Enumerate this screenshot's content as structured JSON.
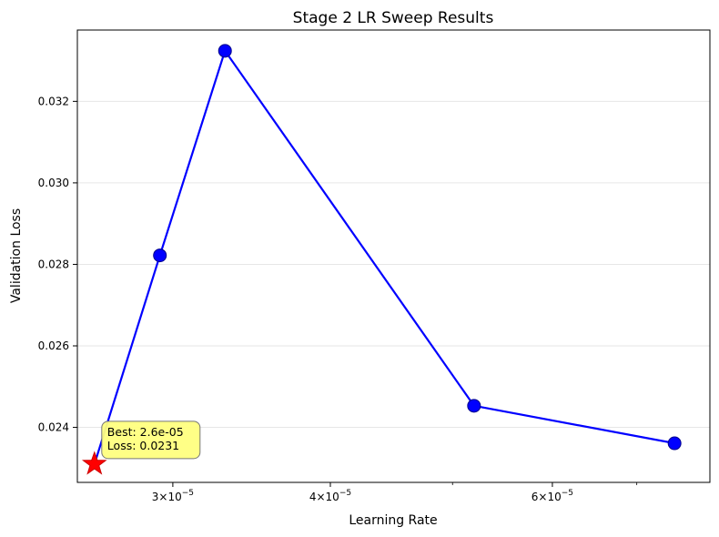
{
  "chart_data": {
    "type": "line",
    "title": "Stage 2 LR Sweep Results",
    "xlabel": "Learning Rate",
    "ylabel": "Validation Loss",
    "xscale": "log",
    "xlim": [
      2.52e-05,
      8e-05
    ],
    "ylim": [
      0.02265,
      0.03375
    ],
    "grid": "y-only",
    "x_ticks": [
      {
        "value": 3e-05,
        "mantissa": "3",
        "exp": "−5"
      },
      {
        "value": 4e-05,
        "mantissa": "4",
        "exp": "−5"
      },
      {
        "value": 6e-05,
        "mantissa": "6",
        "exp": "−5"
      }
    ],
    "x_minor_ticks": [
      5e-05,
      7e-05
    ],
    "y_ticks": [
      {
        "value": 0.024,
        "label": "0.024"
      },
      {
        "value": 0.026,
        "label": "0.026"
      },
      {
        "value": 0.028,
        "label": "0.028"
      },
      {
        "value": 0.03,
        "label": "0.030"
      },
      {
        "value": 0.032,
        "label": "0.032"
      }
    ],
    "series": [
      {
        "color": "#0000ff",
        "points": [
          {
            "x": 2.6e-05,
            "y": 0.0231
          },
          {
            "x": 2.93e-05,
            "y": 0.02822
          },
          {
            "x": 3.3e-05,
            "y": 0.03324
          },
          {
            "x": 5.2e-05,
            "y": 0.02453
          },
          {
            "x": 7.5e-05,
            "y": 0.02361
          }
        ]
      }
    ],
    "best": {
      "x": 2.6e-05,
      "y": 0.0231,
      "marker": "star",
      "color": "#ff0000",
      "annotation": [
        "Best: 2.6e-05",
        "Loss: 0.0231"
      ],
      "annotation_bg": "#ffff80"
    }
  },
  "x_tick_base": "10"
}
